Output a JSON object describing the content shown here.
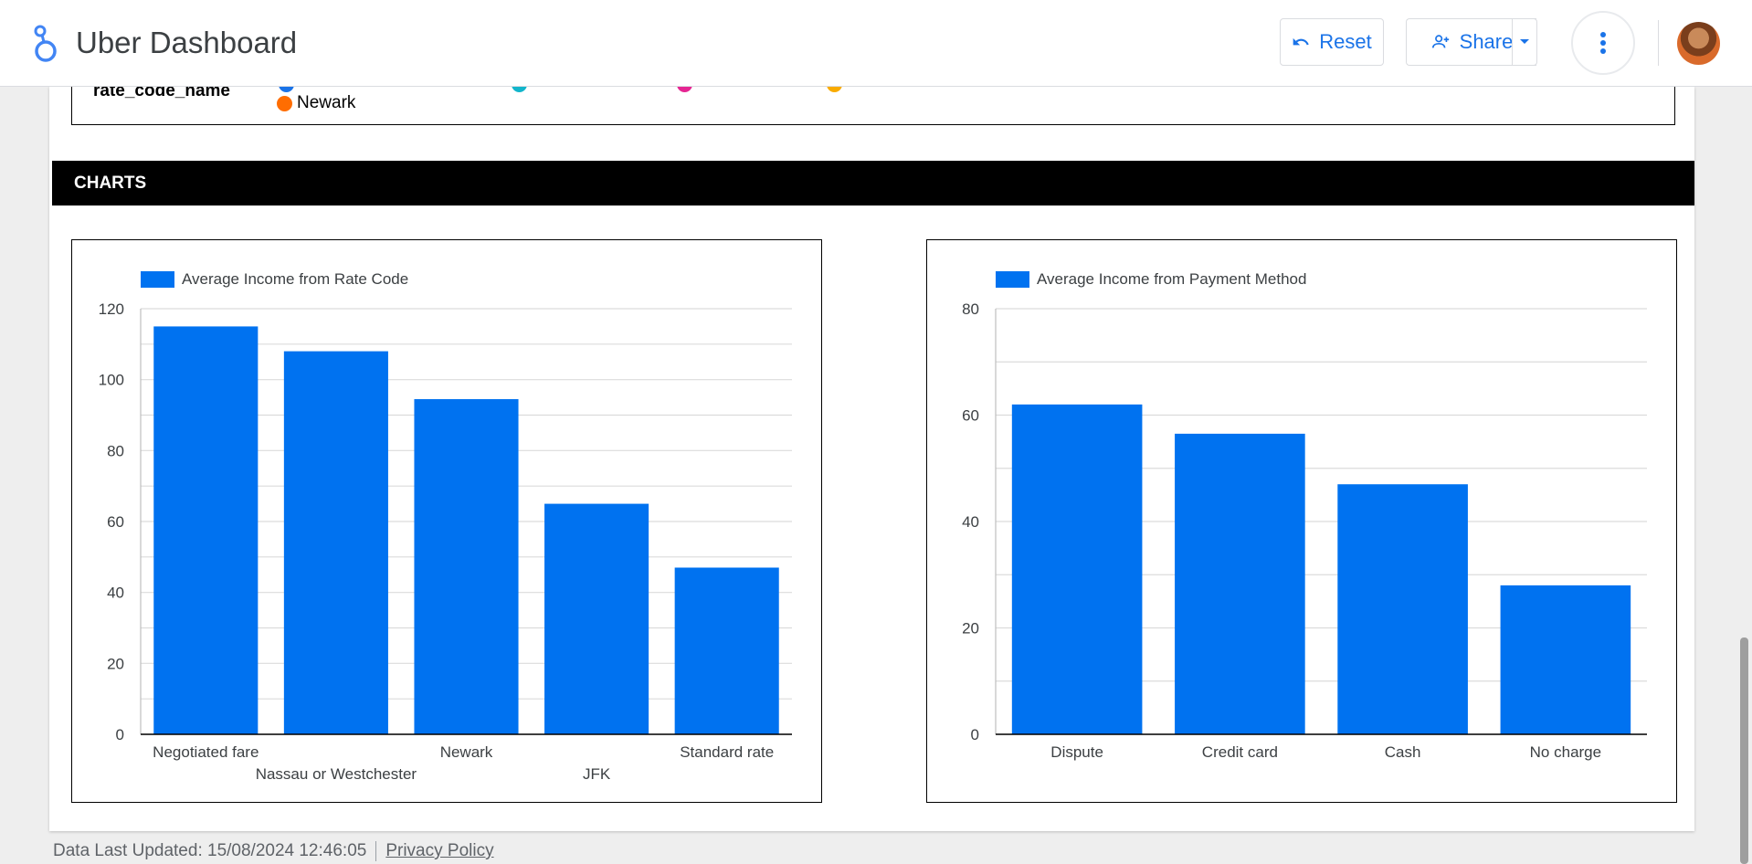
{
  "app": {
    "title": "Uber Dashboard",
    "reset_label": "Reset",
    "share_label": "Share"
  },
  "filter": {
    "label": "rate_code_name",
    "visible_value": "Newark",
    "colors": [
      "#1a73e8",
      "#12b5cb",
      "#e52592",
      "#f9ab00",
      "#ff6d01"
    ]
  },
  "section": {
    "title": "CHARTS"
  },
  "charts": [
    {
      "legend": "Average Income from Rate Code",
      "color": "#0072f0"
    },
    {
      "legend": "Average Income from Payment Method",
      "color": "#0072f0"
    }
  ],
  "chart_data": [
    {
      "type": "bar",
      "categories": [
        "Negotiated fare",
        "Nassau or Westchester",
        "Newark",
        "JFK",
        "Standard rate"
      ],
      "series": [
        {
          "name": "Average Income from Rate Code",
          "values": [
            115,
            108,
            94.5,
            65,
            47
          ]
        }
      ],
      "ylim": [
        0,
        120
      ],
      "yticks": [
        0,
        20,
        40,
        60,
        80,
        100,
        120
      ],
      "grid": true,
      "legend": "top-left"
    },
    {
      "type": "bar",
      "categories": [
        "Dispute",
        "Credit card",
        "Cash",
        "No charge"
      ],
      "series": [
        {
          "name": "Average Income from Payment Method",
          "values": [
            62,
            56.5,
            47,
            28
          ]
        }
      ],
      "ylim": [
        0,
        80
      ],
      "yticks": [
        0,
        20,
        40,
        60,
        80
      ],
      "grid": true,
      "legend": "top-left"
    }
  ],
  "footer": {
    "updated": "Data Last Updated: 15/08/2024 12:46:05",
    "privacy": "Privacy Policy"
  }
}
